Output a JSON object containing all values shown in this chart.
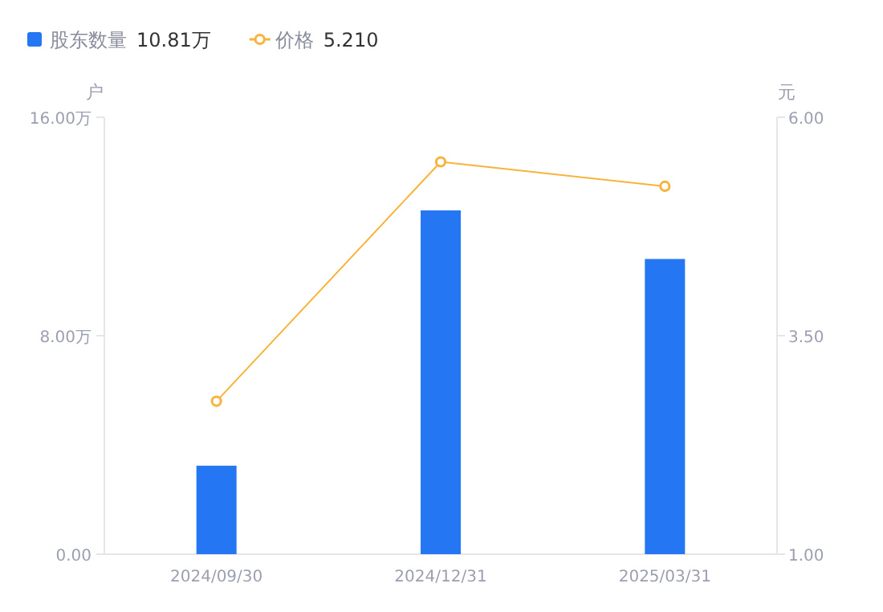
{
  "chart_data": {
    "type": "bar",
    "categories": [
      "2024/09/30",
      "2024/12/31",
      "2025/03/31"
    ],
    "ylabel": "户",
    "y2label": "元",
    "ylim": [
      0,
      16
    ],
    "yticks": [
      {
        "value": 0,
        "label": "0.00"
      },
      {
        "value": 8,
        "label": "8.00万"
      },
      {
        "value": 16,
        "label": "16.00万"
      }
    ],
    "y2lim": [
      1,
      6
    ],
    "y2ticks": [
      {
        "value": 1,
        "label": "1.00"
      },
      {
        "value": 3.5,
        "label": "3.50"
      },
      {
        "value": 6,
        "label": "6.00"
      }
    ],
    "series": [
      {
        "name": "股东数量",
        "color": "#2576f3",
        "values": [
          3.24,
          12.59,
          10.81
        ]
      },
      {
        "name": "价格",
        "type": "line",
        "axis": "y2",
        "color": "#f8b33a",
        "marker": "circle",
        "values": [
          2.75,
          5.49,
          5.21
        ]
      }
    ],
    "annotations": [
      "10.81万",
      "5.210"
    ],
    "legend": "top left",
    "grid": false
  }
}
